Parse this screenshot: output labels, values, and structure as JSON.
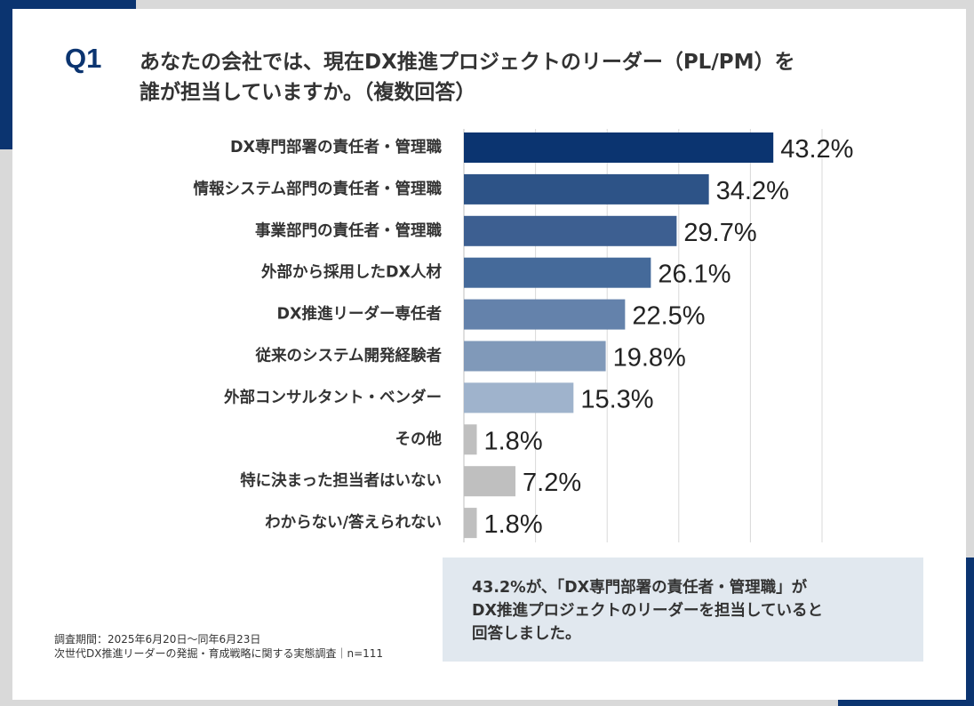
{
  "question": {
    "number": "Q1",
    "line1": "あなたの会社では、現在DX推進プロジェクトのリーダー（PL/PM）を",
    "line2": "誰が担当していますか。（複数回答）"
  },
  "chart_data": {
    "type": "bar",
    "orientation": "horizontal",
    "title": "あなたの会社では、現在DX推進プロジェクトのリーダー（PL/PM）を誰が担当していますか。（複数回答）",
    "unit": "%",
    "xlim": [
      0,
      50
    ],
    "grid": true,
    "categories": [
      "DX専門部署の責任者・管理職",
      "情報システム部門の責任者・管理職",
      "事業部門の責任者・管理職",
      "外部から採用したDX人材",
      "DX推進リーダー専任者",
      "従来のシステム開発経験者",
      "外部コンサルタント・ベンダー",
      "その他",
      "特に決まった担当者はいない",
      "わからない/答えられない"
    ],
    "values": [
      43.2,
      34.2,
      29.7,
      26.1,
      22.5,
      19.8,
      15.3,
      1.8,
      7.2,
      1.8
    ],
    "value_labels": [
      "43.2%",
      "34.2%",
      "29.7%",
      "26.1%",
      "22.5%",
      "19.8%",
      "15.3%",
      "1.8%",
      "7.2%",
      "1.8%"
    ],
    "colors": [
      "#0b3470",
      "#2d5387",
      "#3d5f91",
      "#456a9a",
      "#6482ab",
      "#8099b9",
      "#9fb3cc",
      "#bfbfbf",
      "#bfbfbf",
      "#bfbfbf"
    ]
  },
  "note": {
    "line1": "43.2%が、「DX専門部署の責任者・管理職」が",
    "line2": "DX推進プロジェクトのリーダーを担当していると",
    "line3": "回答しました。"
  },
  "footer": {
    "period": "調査期間：2025年6月20日～同年6月23日",
    "survey": "次世代DX推進リーダーの発掘・育成戦略に関する実態調査｜n=111"
  },
  "colors": {
    "accent": "#0b3470",
    "note_bg": "#e1e8ef",
    "frame": "#d9d9d9"
  }
}
